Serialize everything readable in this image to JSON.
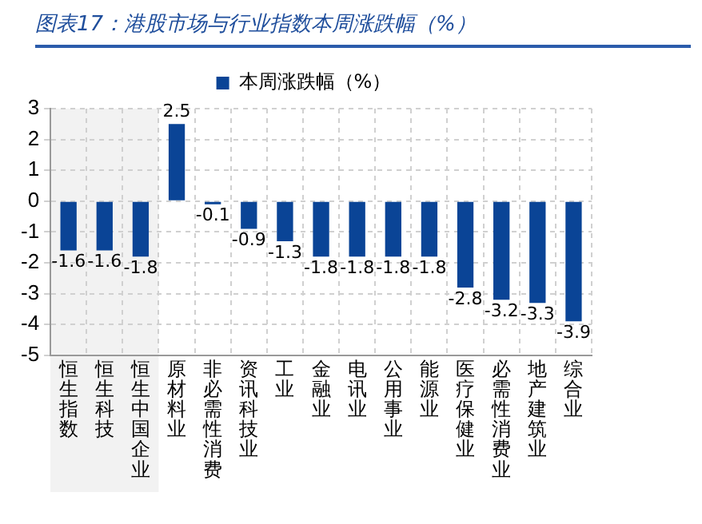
{
  "chart_data": {
    "type": "bar",
    "title": "图表17：港股市场与行业指数本周涨跌幅（%）",
    "categories": [
      "恒生指数",
      "恒生科技",
      "恒生中国企业",
      "原材料业",
      "非必需性消费",
      "资讯科技业",
      "工业",
      "金融业",
      "电讯业",
      "公用事业",
      "能源业",
      "医疗保健业",
      "必需性消费业",
      "地产建筑业",
      "综合业"
    ],
    "series": [
      {
        "name": "本周涨跌幅（%）",
        "color": "#0a4496",
        "values": [
          -1.6,
          -1.6,
          -1.8,
          2.5,
          -0.1,
          -0.9,
          -1.3,
          -1.8,
          -1.8,
          -1.8,
          -1.8,
          -2.8,
          -3.2,
          -3.3,
          -3.9
        ]
      }
    ],
    "ylim": [
      -5,
      3
    ],
    "yticks": [
      -5,
      -4,
      -3,
      -2,
      -1,
      0,
      1,
      2,
      3
    ],
    "grid": true,
    "legend": "top",
    "data_labels": true,
    "bands": [
      {
        "axis": "x",
        "from": "恒生指数",
        "to": "恒生中国企业",
        "color": "#f2f2f2"
      }
    ]
  }
}
